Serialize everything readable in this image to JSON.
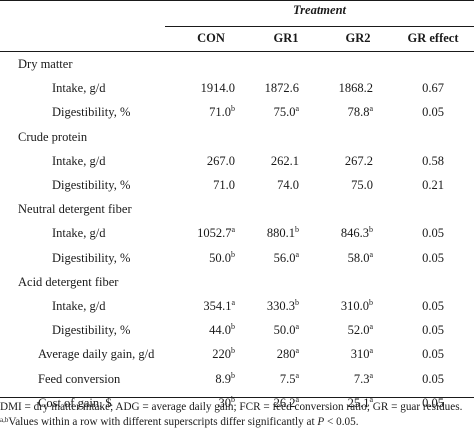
{
  "table": {
    "group_header": "Treatment",
    "columns": [
      "CON",
      "GR1",
      "GR2",
      "GR effect"
    ],
    "rows": [
      {
        "label": "Dry matter",
        "kind": "section"
      },
      {
        "label": "Intake, g/d",
        "kind": "sub",
        "values": [
          "1914.0",
          "1872.6",
          "1868.2",
          "0.67"
        ],
        "sups": [
          "",
          "",
          "",
          ""
        ]
      },
      {
        "label": "Digestibility, %",
        "kind": "sub",
        "values": [
          "71.0",
          "75.0",
          "78.8",
          "0.05"
        ],
        "sups": [
          "b",
          "a",
          "a",
          ""
        ]
      },
      {
        "label": "Crude protein",
        "kind": "section"
      },
      {
        "label": "Intake, g/d",
        "kind": "sub",
        "values": [
          "267.0",
          "262.1",
          "267.2",
          "0.58"
        ],
        "sups": [
          "",
          "",
          "",
          ""
        ]
      },
      {
        "label": "Digestibility, %",
        "kind": "sub",
        "values": [
          "71.0",
          "74.0",
          "75.0",
          "0.21"
        ],
        "sups": [
          "",
          "",
          "",
          ""
        ]
      },
      {
        "label": "Neutral detergent fiber",
        "kind": "section"
      },
      {
        "label": "Intake, g/d",
        "kind": "sub",
        "values": [
          "1052.7",
          "880.1",
          "846.3",
          "0.05"
        ],
        "sups": [
          "a",
          "b",
          "b",
          ""
        ]
      },
      {
        "label": "Digestibility, %",
        "kind": "sub",
        "values": [
          "50.0",
          "56.0",
          "58.0",
          "0.05"
        ],
        "sups": [
          "b",
          "a",
          "a",
          ""
        ]
      },
      {
        "label": "Acid detergent fiber",
        "kind": "section"
      },
      {
        "label": "Intake, g/d",
        "kind": "sub",
        "values": [
          "354.1",
          "330.3",
          "310.0",
          "0.05"
        ],
        "sups": [
          "a",
          "b",
          "b",
          ""
        ]
      },
      {
        "label": "Digestibility, %",
        "kind": "sub",
        "values": [
          "44.0",
          "50.0",
          "52.0",
          "0.05"
        ],
        "sups": [
          "b",
          "a",
          "a",
          ""
        ]
      },
      {
        "label": "Average daily gain, g/d",
        "kind": "plain",
        "values": [
          "220",
          "280",
          "310",
          "0.05"
        ],
        "sups": [
          "b",
          "a",
          "a",
          ""
        ]
      },
      {
        "label": "Feed conversion",
        "kind": "plain",
        "values": [
          "8.9",
          "7.5",
          "7.3",
          "0.05"
        ],
        "sups": [
          "b",
          "a",
          "a",
          ""
        ]
      },
      {
        "label": "Cost of gain, $",
        "kind": "plain",
        "values": [
          "30",
          "26.2",
          "25.1",
          "0.05"
        ],
        "sups": [
          "b",
          "a",
          "a",
          ""
        ]
      }
    ]
  },
  "footnotes": {
    "abbreviations": "DMI = dry matter intake; ADG = average daily gain; FCR = feed conversion ratio; GR = guar residues.",
    "sig_sup": "a,b",
    "sig_text_1": "Values within a row with different superscripts differ significantly at ",
    "sig_p": "P",
    "sig_text_2": " < 0.05."
  }
}
